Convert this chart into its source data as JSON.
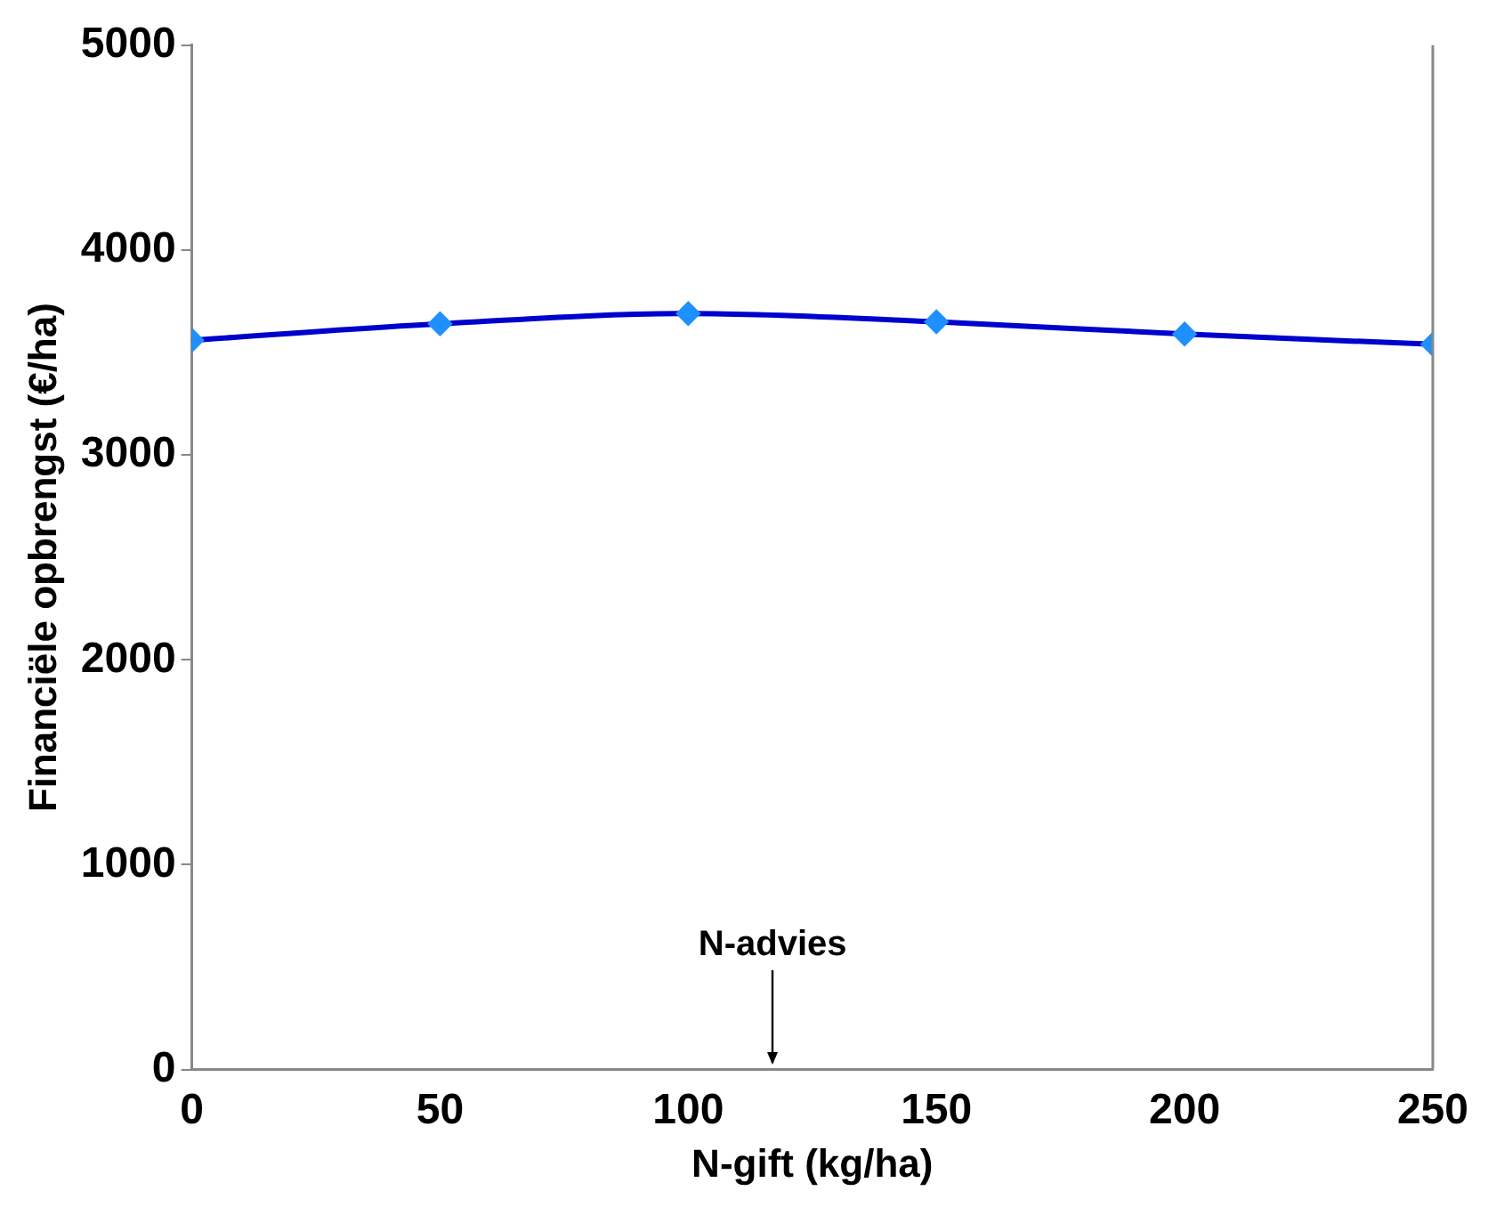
{
  "chart_data": {
    "type": "line",
    "xlabel": "N-gift (kg/ha)",
    "ylabel": "Financiële opbrengst (€/ha)",
    "x": [
      0,
      50,
      100,
      150,
      200,
      250
    ],
    "series": [
      {
        "color": "#0000cc",
        "values": [
          3560,
          3640,
          3690,
          3650,
          3590,
          3540
        ]
      }
    ],
    "xlim": [
      0,
      250
    ],
    "xticks": [
      0,
      50,
      100,
      150,
      200,
      250
    ],
    "ylim": [
      0,
      5000
    ],
    "yticks": [
      0,
      1000,
      2000,
      3000,
      4000,
      5000
    ],
    "ref_lines": [
      {
        "axis": "x",
        "value": 117,
        "label": "N-advies"
      }
    ],
    "grid": false,
    "legend": false,
    "marker": "diamond",
    "line_style": "solid"
  }
}
